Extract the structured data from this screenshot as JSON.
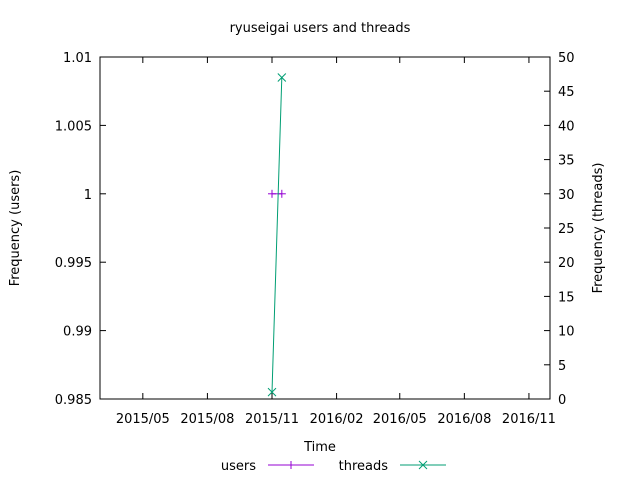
{
  "chart_data": {
    "type": "line",
    "title": "ryuseigai users and threads",
    "xlabel": "Time",
    "ylabel_left": "Frequency (users)",
    "ylabel_right": "Frequency (threads)",
    "x_ticks": [
      "2015/05",
      "2015/08",
      "2015/11",
      "2016/02",
      "2016/05",
      "2016/08",
      "2016/11"
    ],
    "x_tick_dates": [
      "2015-05-01",
      "2015-08-01",
      "2015-11-01",
      "2016-02-01",
      "2016-05-01",
      "2016-08-01",
      "2016-11-01"
    ],
    "x_range": [
      "2015-03-01",
      "2016-12-01"
    ],
    "y_left_range": [
      0.985,
      1.01
    ],
    "y_left_ticks": [
      "0.985",
      "0.99",
      "0.995",
      "1",
      "1.005",
      "1.01"
    ],
    "y_left_tick_values": [
      0.985,
      0.99,
      0.995,
      1,
      1.005,
      1.01
    ],
    "y_right_range": [
      0,
      50
    ],
    "y_right_ticks": [
      "0",
      "5",
      "10",
      "15",
      "20",
      "25",
      "30",
      "35",
      "40",
      "45",
      "50"
    ],
    "y_right_tick_values": [
      0,
      5,
      10,
      15,
      20,
      25,
      30,
      35,
      40,
      45,
      50
    ],
    "grid": false,
    "legend_position": "bottom",
    "series": [
      {
        "name": "users",
        "axis": "left",
        "color": "#9400d3",
        "marker": "plus",
        "x": [
          "2015-11-01",
          "2015-11-15"
        ],
        "y": [
          1,
          1
        ]
      },
      {
        "name": "threads",
        "axis": "right",
        "color": "#009e73",
        "marker": "cross",
        "x": [
          "2015-11-01",
          "2015-11-15"
        ],
        "y": [
          1,
          47
        ]
      }
    ]
  }
}
